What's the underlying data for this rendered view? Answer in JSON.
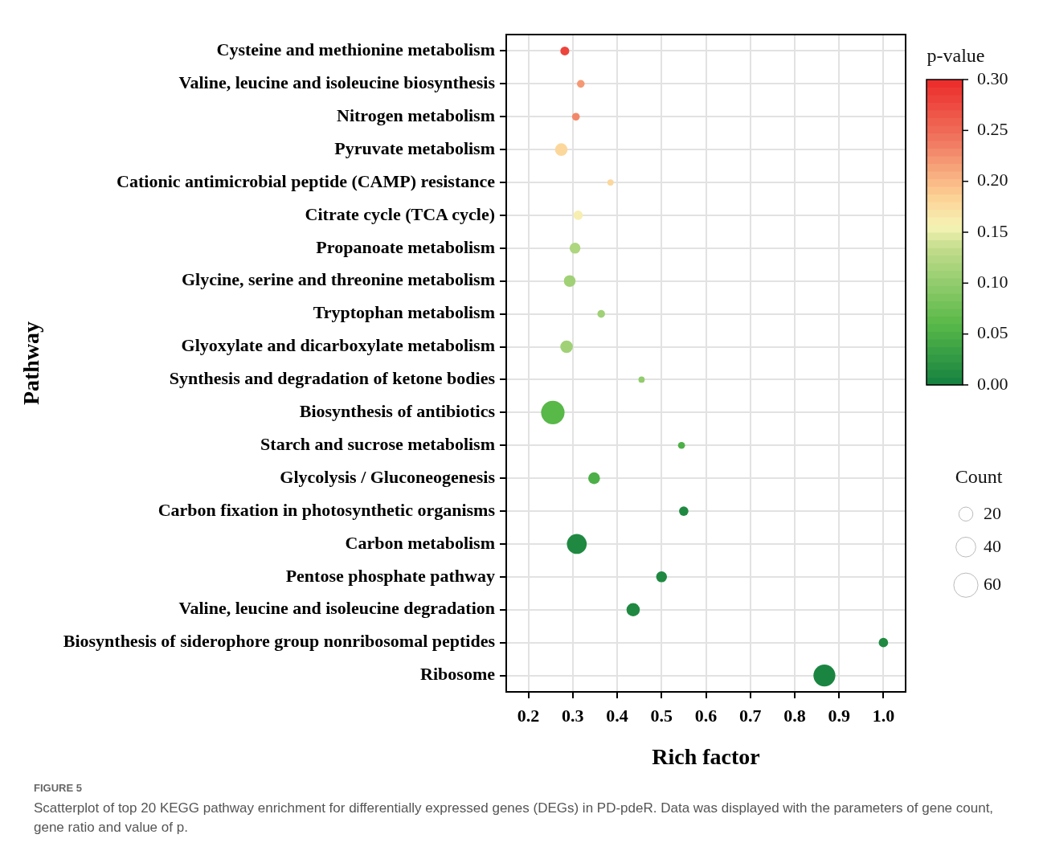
{
  "chart_data": {
    "type": "bubble",
    "orientation": "horizontal",
    "categories": [
      "Cysteine and methionine metabolism",
      "Valine, leucine and isoleucine biosynthesis",
      "Nitrogen metabolism",
      "Pyruvate metabolism",
      "Cationic antimicrobial peptide (CAMP) resistance",
      "Citrate cycle (TCA cycle)",
      "Propanoate metabolism",
      "Glycine, serine and threonine metabolism",
      "Tryptophan metabolism",
      "Glyoxylate and dicarboxylate metabolism",
      "Synthesis and degradation of ketone bodies",
      "Biosynthesis of antibiotics",
      "Starch and sucrose metabolism",
      "Glycolysis / Gluconeogenesis",
      "Carbon fixation in photosynthetic organisms",
      "Carbon metabolism",
      "Pentose phosphate pathway",
      "Valine, leucine and isoleucine degradation",
      "Biosynthesis of siderophore group nonribosomal peptides",
      "Ribosome"
    ],
    "values": [
      0.282,
      0.318,
      0.307,
      0.274,
      0.385,
      0.312,
      0.305,
      0.293,
      0.364,
      0.286,
      0.455,
      0.255,
      0.545,
      0.348,
      0.55,
      0.309,
      0.5,
      0.436,
      1.0,
      0.867
    ],
    "sizes": [
      8,
      6,
      6,
      16,
      4,
      9,
      12,
      14,
      6,
      16,
      4,
      56,
      5,
      14,
      9,
      40,
      12,
      18,
      9,
      49
    ],
    "size_legend": [
      20,
      40,
      60
    ],
    "cvalues": [
      0.28,
      0.22,
      0.23,
      0.18,
      0.18,
      0.16,
      0.12,
      0.11,
      0.11,
      0.11,
      0.1,
      0.06,
      0.05,
      0.05,
      0.01,
      0.01,
      0.01,
      0.01,
      0.01,
      0.005
    ],
    "clim": [
      0,
      0.3
    ],
    "cticks": [
      {
        "value": 0,
        "label": "0.00"
      },
      {
        "value": 0.05,
        "label": "0.05"
      },
      {
        "value": 0.1,
        "label": "0.10"
      },
      {
        "value": 0.15,
        "label": "0.15"
      },
      {
        "value": 0.2,
        "label": "0.20"
      },
      {
        "value": 0.25,
        "label": "0.25"
      },
      {
        "value": 0.3,
        "label": "0.30"
      }
    ],
    "clabel": "p-value",
    "legend_title": "Count",
    "xlabel": "Rich factor",
    "ylabel": "Pathway",
    "xlim": [
      0.15,
      1.05
    ],
    "xticks": [
      0.2,
      0.3,
      0.4,
      0.5,
      0.6,
      0.7,
      0.8,
      0.9,
      {
        "value": 1.0,
        "label": "1.0"
      }
    ],
    "grid": true,
    "annotations": [
      "FIGURE 5",
      "Scatterplot of top 20 KEGG pathway enrichment for differentially expressed genes (DEGs) in PD-pdeR. Data was displayed with the parameters of gene count, gene ratio and value of p."
    ]
  }
}
